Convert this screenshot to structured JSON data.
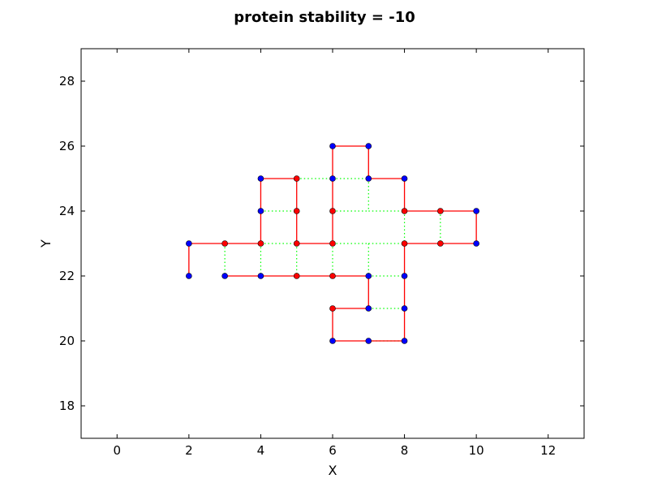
{
  "chart_data": {
    "type": "line",
    "title": "protein stability = -10",
    "xlabel": "X",
    "ylabel": "Y",
    "xlim": [
      -1,
      13
    ],
    "ylim": [
      17,
      29
    ],
    "xticks": [
      0,
      2,
      4,
      6,
      8,
      10,
      12
    ],
    "yticks": [
      18,
      20,
      22,
      24,
      26,
      28
    ],
    "grid": false,
    "legend": "none",
    "colors": {
      "chain": "#ff0000",
      "bond": "#00ff00",
      "hydrophobic": "#ff0000",
      "polar": "#0000ff",
      "marker_edge": "#000000"
    },
    "series": [
      {
        "values": [
          {
            "x": 2,
            "y": 22,
            "type": "P"
          },
          {
            "x": 2,
            "y": 23,
            "type": "P"
          },
          {
            "x": 3,
            "y": 23,
            "type": "H"
          },
          {
            "x": 4,
            "y": 23,
            "type": "H"
          },
          {
            "x": 4,
            "y": 24,
            "type": "P"
          },
          {
            "x": 4,
            "y": 25,
            "type": "P"
          },
          {
            "x": 5,
            "y": 25,
            "type": "H"
          },
          {
            "x": 5,
            "y": 24,
            "type": "H"
          },
          {
            "x": 5,
            "y": 23,
            "type": "H"
          },
          {
            "x": 6,
            "y": 23,
            "type": "H"
          },
          {
            "x": 6,
            "y": 24,
            "type": "H"
          },
          {
            "x": 6,
            "y": 25,
            "type": "P"
          },
          {
            "x": 6,
            "y": 26,
            "type": "P"
          },
          {
            "x": 7,
            "y": 26,
            "type": "P"
          },
          {
            "x": 7,
            "y": 25,
            "type": "P"
          },
          {
            "x": 8,
            "y": 25,
            "type": "P"
          },
          {
            "x": 8,
            "y": 24,
            "type": "H"
          },
          {
            "x": 9,
            "y": 24,
            "type": "H"
          },
          {
            "x": 10,
            "y": 24,
            "type": "P"
          },
          {
            "x": 10,
            "y": 23,
            "type": "P"
          },
          {
            "x": 9,
            "y": 23,
            "type": "H"
          },
          {
            "x": 8,
            "y": 23,
            "type": "H"
          },
          {
            "x": 8,
            "y": 22,
            "type": "P"
          },
          {
            "x": 8,
            "y": 21,
            "type": "P"
          },
          {
            "x": 8,
            "y": 20,
            "type": "P"
          },
          {
            "x": 7,
            "y": 20,
            "type": "P"
          },
          {
            "x": 6,
            "y": 20,
            "type": "P"
          },
          {
            "x": 6,
            "y": 21,
            "type": "H"
          },
          {
            "x": 7,
            "y": 21,
            "type": "P"
          },
          {
            "x": 7,
            "y": 22,
            "type": "P"
          },
          {
            "x": 6,
            "y": 22,
            "type": "H"
          },
          {
            "x": 5,
            "y": 22,
            "type": "H"
          },
          {
            "x": 4,
            "y": 22,
            "type": "P"
          },
          {
            "x": 3,
            "y": 22,
            "type": "P"
          }
        ]
      }
    ],
    "bonds": [
      [
        [
          5,
          25
        ],
        [
          6,
          25
        ]
      ],
      [
        [
          6,
          25
        ],
        [
          7,
          25
        ]
      ],
      [
        [
          4,
          24
        ],
        [
          5,
          24
        ]
      ],
      [
        [
          6,
          24
        ],
        [
          7,
          24
        ]
      ],
      [
        [
          7,
          24
        ],
        [
          8,
          24
        ]
      ],
      [
        [
          4,
          23
        ],
        [
          5,
          23
        ]
      ],
      [
        [
          6,
          23
        ],
        [
          7,
          23
        ]
      ],
      [
        [
          7,
          23
        ],
        [
          8,
          23
        ]
      ],
      [
        [
          3,
          23
        ],
        [
          3,
          22
        ]
      ],
      [
        [
          4,
          23
        ],
        [
          4,
          22
        ]
      ],
      [
        [
          5,
          23
        ],
        [
          5,
          22
        ]
      ],
      [
        [
          6,
          23
        ],
        [
          6,
          22
        ]
      ],
      [
        [
          7,
          23
        ],
        [
          7,
          22
        ]
      ],
      [
        [
          9,
          24
        ],
        [
          9,
          23
        ]
      ],
      [
        [
          7,
          25
        ],
        [
          7,
          24
        ]
      ],
      [
        [
          8,
          24
        ],
        [
          8,
          23
        ]
      ],
      [
        [
          7,
          22
        ],
        [
          8,
          22
        ]
      ],
      [
        [
          7,
          21
        ],
        [
          8,
          21
        ]
      ],
      [
        [
          7,
          20
        ],
        [
          8,
          20
        ]
      ]
    ]
  }
}
